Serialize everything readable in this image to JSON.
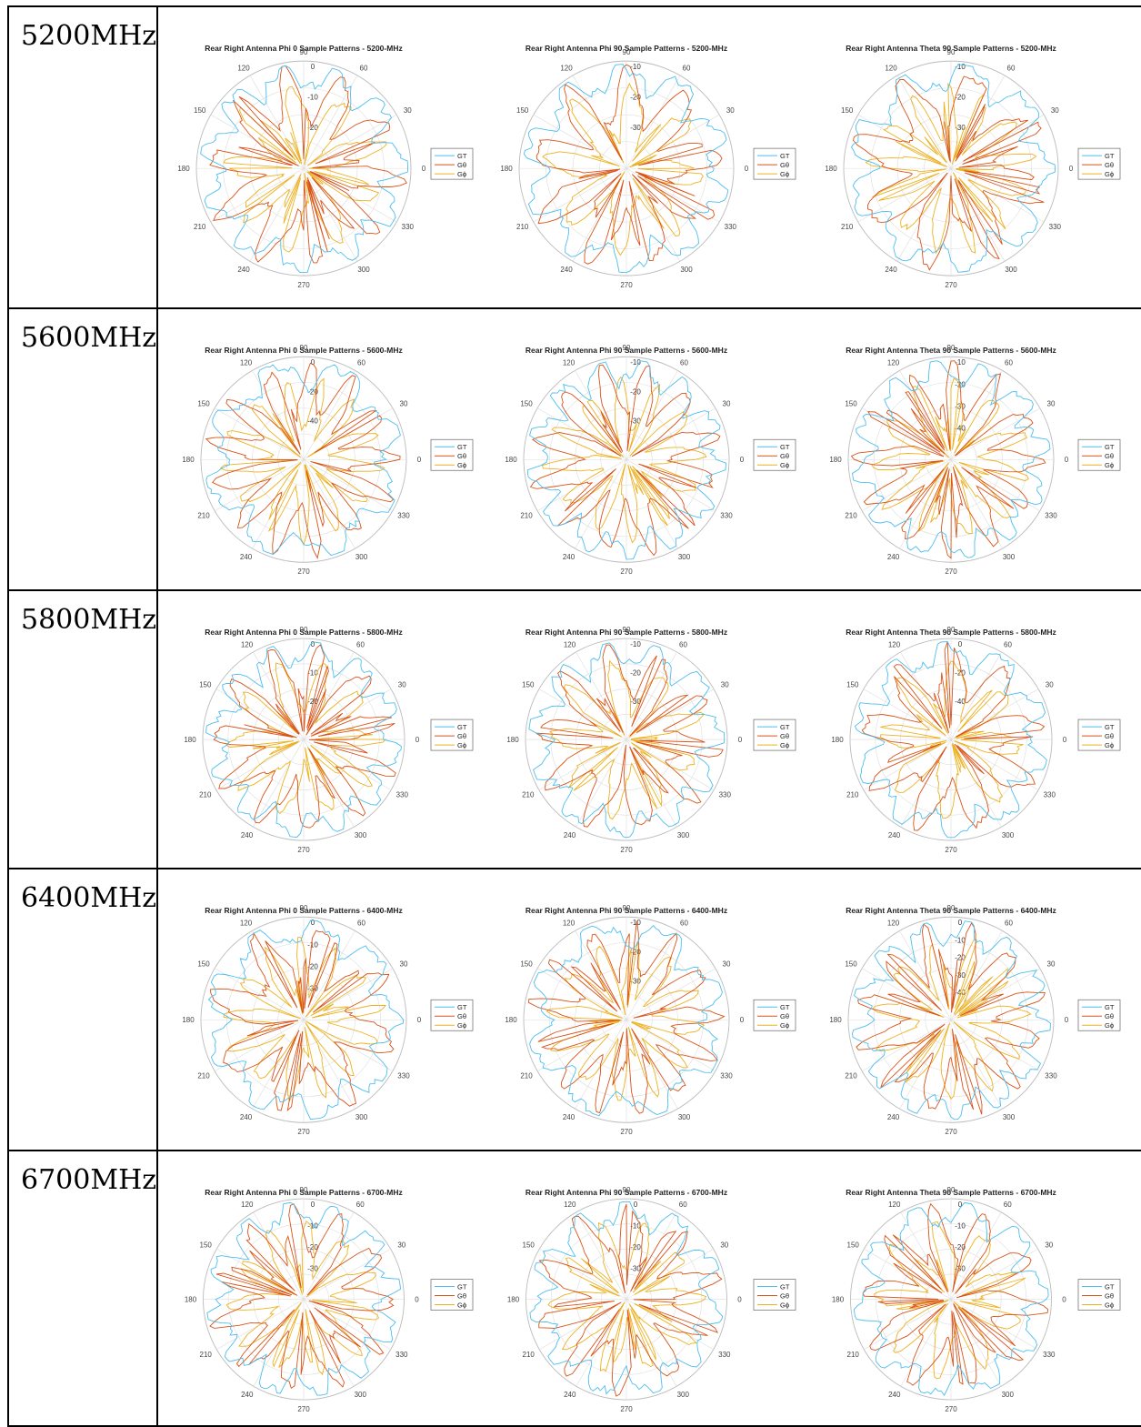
{
  "rows": [
    {
      "frequency": "5200MHz",
      "top": 6,
      "height": 332,
      "plots": [
        {
          "title": "Rear Right Antenna Phi 0 Sample Patterns - 5200-MHz",
          "radial_ticks": [
            "0",
            "-10",
            "-20"
          ],
          "seed": 1
        },
        {
          "title": "Rear Right Antenna Phi 90 Sample Patterns - 5200-MHz",
          "radial_ticks": [
            "-10",
            "-20",
            "-30"
          ],
          "seed": 2
        },
        {
          "title": "Rear Right Antenna Theta 90 Sample Patterns - 5200-MHz",
          "radial_ticks": [
            "-10",
            "-20",
            "-30"
          ],
          "seed": 3
        }
      ]
    },
    {
      "frequency": "5600MHz",
      "top": 338,
      "height": 310,
      "plots": [
        {
          "title": "Rear Right Antenna Phi 0 Sample Patterns - 5600-MHz",
          "radial_ticks": [
            "0",
            "-20",
            "-40"
          ],
          "seed": 4
        },
        {
          "title": "Rear Right Antenna Phi 90 Sample Patterns - 5600-MHz",
          "radial_ticks": [
            "-10",
            "-20",
            "-30"
          ],
          "seed": 5
        },
        {
          "title": "Rear Right Antenna Theta 90 Sample Patterns - 5600-MHz",
          "radial_ticks": [
            "-10",
            "-20",
            "-30",
            "-40"
          ],
          "seed": 6
        }
      ]
    },
    {
      "frequency": "5800MHz",
      "top": 648,
      "height": 306,
      "plots": [
        {
          "title": "Rear Right Antenna Phi 0 Sample Patterns - 5800-MHz",
          "radial_ticks": [
            "0",
            "-10",
            "-20"
          ],
          "seed": 7
        },
        {
          "title": "Rear Right Antenna Phi 90 Sample Patterns - 5800-MHz",
          "radial_ticks": [
            "-10",
            "-20",
            "-30"
          ],
          "seed": 8
        },
        {
          "title": "Rear Right Antenna Theta 90 Sample Patterns - 5800-MHz",
          "radial_ticks": [
            "0",
            "-20",
            "-40"
          ],
          "seed": 9
        }
      ]
    },
    {
      "frequency": "6400MHz",
      "top": 954,
      "height": 310,
      "plots": [
        {
          "title": "Rear Right Antenna Phi 0 Sample Patterns - 6400-MHz",
          "radial_ticks": [
            "0",
            "-10",
            "-20",
            "-30"
          ],
          "seed": 10
        },
        {
          "title": "Rear Right Antenna Phi 90 Sample Patterns - 6400-MHz",
          "radial_ticks": [
            "-10",
            "-20",
            "-30"
          ],
          "seed": 11
        },
        {
          "title": "Rear Right Antenna Theta 90 Sample Patterns - 6400-MHz",
          "radial_ticks": [
            "0",
            "-10",
            "-20",
            "-30",
            "-40"
          ],
          "seed": 12
        }
      ]
    },
    {
      "frequency": "6700MHz",
      "top": 1264,
      "height": 305,
      "plots": [
        {
          "title": "Rear Right Antenna Phi 0 Sample Patterns - 6700-MHz",
          "radial_ticks": [
            "0",
            "-10",
            "-20",
            "-30"
          ],
          "seed": 13
        },
        {
          "title": "Rear Right Antenna Phi 90 Sample Patterns - 6700-MHz",
          "radial_ticks": [
            "0",
            "-10",
            "-20",
            "-30"
          ],
          "seed": 14
        },
        {
          "title": "Rear Right Antenna Theta 90 Sample Patterns - 6700-MHz",
          "radial_ticks": [
            "0",
            "-10",
            "-20",
            "-30"
          ],
          "seed": 15
        }
      ]
    }
  ],
  "angle_ticks": [
    "0",
    "30",
    "60",
    "90",
    "120",
    "150",
    "180",
    "210",
    "240",
    "270",
    "300",
    "330"
  ],
  "legend": [
    "GT",
    "Gθ",
    "Gϕ"
  ],
  "colors": {
    "GT": "#4DBEEE",
    "Gtheta": "#D95319",
    "Gphi": "#EDB120",
    "grid": "#dddddd",
    "axis": "#555555"
  }
}
